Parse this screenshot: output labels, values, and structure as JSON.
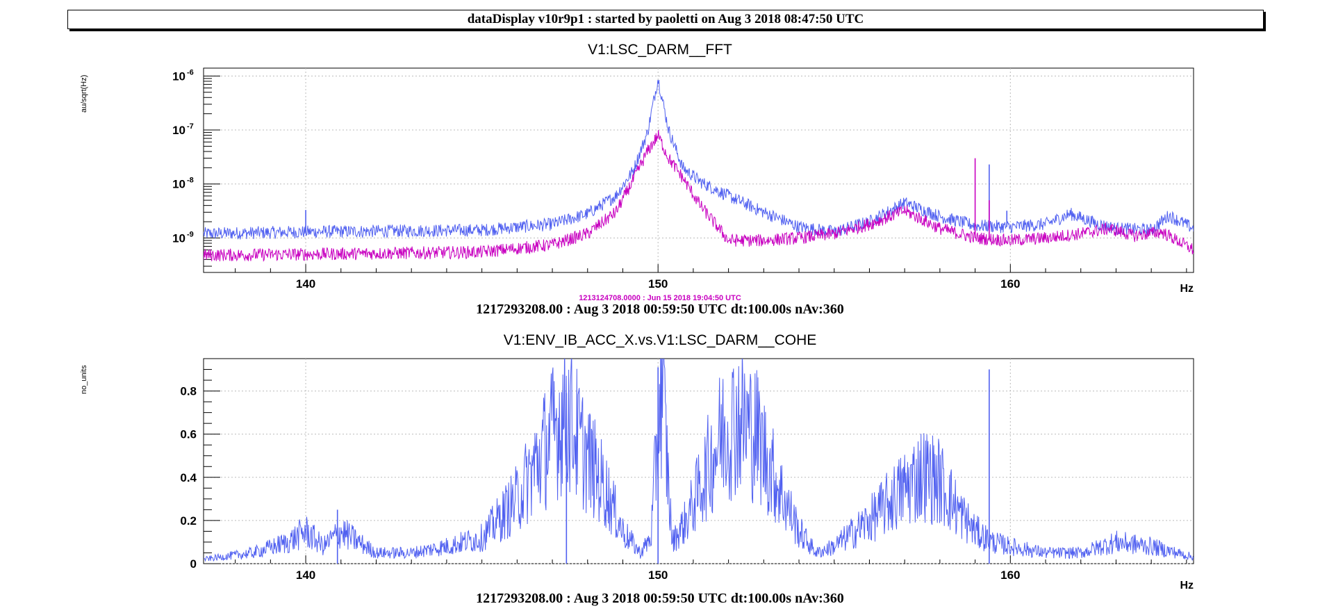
{
  "header": {
    "title": "dataDisplay v10r9p1 : started by paoletti on Aug  3 2018 08:47:50 UTC"
  },
  "colors": {
    "trace_blue": "#5060f0",
    "trace_magenta": "#c800c0",
    "grid": "#bbbbbb"
  },
  "chart_data": [
    {
      "type": "line",
      "title": "V1:LSC_DARM__FFT",
      "ylabel": "au/sqrt(Hz)",
      "xlabel": "Hz",
      "y_scale": "log",
      "xlim": [
        137.1,
        165.2
      ],
      "ylim": [
        2.3e-10,
        1.4e-06
      ],
      "x_ticks": [
        140,
        150,
        160
      ],
      "y_ticks": [
        1e-09,
        1e-08,
        1e-07,
        1e-06
      ],
      "grid": true,
      "reference_label": "1213124708.0000 : Jun 15 2018 19:04:50 UTC",
      "footer": "1217293208.00 : Aug  3 2018 00:59:50 UTC dt:100.00s nAv:360",
      "series": [
        {
          "color": "#5060f0",
          "x": [
            137.1,
            140.0,
            145.0,
            147.0,
            148.0,
            148.8,
            149.3,
            149.7,
            150.0,
            150.3,
            150.7,
            151.2,
            152.0,
            153.0,
            154.0,
            155.0,
            156.0,
            157.0,
            158.0,
            159.0,
            160.0,
            161.0,
            161.7,
            162.5,
            163.0,
            164.0,
            164.5,
            165.2
          ],
          "y": [
            1.2e-09,
            1.3e-09,
            1.4e-09,
            1.8e-09,
            2.8e-09,
            6e-09,
            1.8e-08,
            9e-08,
            9e-07,
            1e-07,
            2e-08,
            1.1e-08,
            6e-09,
            3e-09,
            1.6e-09,
            1.3e-09,
            2e-09,
            4.5e-09,
            2.5e-09,
            1.7e-09,
            1.6e-09,
            1.8e-09,
            2.8e-09,
            1.8e-09,
            1.5e-09,
            1.4e-09,
            2.6e-09,
            1.5e-09
          ],
          "spikes": [
            [
              140.0,
              3.3e-09
            ],
            [
              159.4,
              2.3e-08
            ],
            [
              159.9,
              3.2e-09
            ]
          ]
        },
        {
          "color": "#c800c0",
          "x": [
            137.1,
            140.0,
            145.0,
            147.0,
            148.0,
            148.8,
            149.3,
            149.7,
            150.0,
            150.3,
            150.7,
            151.2,
            152.0,
            153.0,
            154.0,
            155.0,
            156.0,
            157.0,
            158.0,
            159.0,
            160.0,
            161.0,
            162.0,
            162.8,
            163.5,
            164.3,
            165.2
          ],
          "y": [
            4.8e-10,
            5e-10,
            5.5e-10,
            7.5e-10,
            1.2e-09,
            3e-09,
            1.2e-08,
            4e-08,
            8e-08,
            3e-08,
            1.3e-08,
            4e-09,
            9e-10,
            9e-10,
            1e-09,
            1.2e-09,
            1.8e-09,
            3.2e-09,
            1.5e-09,
            1e-09,
            9e-10,
            1e-09,
            1.2e-09,
            1.5e-09,
            1.1e-09,
            1.3e-09,
            6e-10
          ],
          "spikes": [
            [
              159.0,
              3e-08
            ],
            [
              159.4,
              5e-09
            ]
          ]
        }
      ]
    },
    {
      "type": "line",
      "title": "V1:ENV_IB_ACC_X.vs.V1:LSC_DARM__COHE",
      "ylabel": "no_units",
      "xlabel": "Hz",
      "xlim": [
        137.1,
        165.2
      ],
      "ylim": [
        0,
        0.95
      ],
      "x_ticks": [
        140,
        150,
        160
      ],
      "y_ticks": [
        0,
        0.2,
        0.4,
        0.6,
        0.8
      ],
      "grid": true,
      "footer": "1217293208.00 : Aug  3 2018 00:59:50 UTC dt:100.00s nAv:360",
      "series": [
        {
          "color": "#5060f0",
          "x": [
            137.1,
            138.5,
            139.5,
            140.0,
            140.5,
            141.0,
            142.0,
            143.0,
            144.0,
            145.0,
            146.0,
            146.5,
            147.0,
            147.4,
            147.8,
            148.5,
            149.0,
            149.5,
            149.8,
            150.1,
            150.4,
            150.8,
            151.3,
            151.8,
            152.3,
            152.8,
            153.3,
            154.0,
            154.5,
            155.0,
            156.0,
            157.0,
            157.5,
            158.0,
            158.5,
            159.0,
            159.5,
            160.0,
            161.0,
            162.0,
            163.0,
            164.0,
            165.2
          ],
          "y": [
            0.02,
            0.05,
            0.1,
            0.15,
            0.08,
            0.15,
            0.05,
            0.05,
            0.08,
            0.12,
            0.3,
            0.45,
            0.6,
            0.72,
            0.55,
            0.35,
            0.15,
            0.05,
            0.12,
            0.88,
            0.1,
            0.2,
            0.4,
            0.6,
            0.68,
            0.6,
            0.4,
            0.15,
            0.05,
            0.08,
            0.2,
            0.35,
            0.42,
            0.38,
            0.25,
            0.15,
            0.1,
            0.08,
            0.05,
            0.05,
            0.1,
            0.08,
            0.03
          ],
          "spikes": [
            [
              150.0,
              0.91
            ],
            [
              159.4,
              0.9
            ],
            [
              140.9,
              0.25
            ],
            [
              147.4,
              0.79
            ]
          ]
        }
      ]
    }
  ]
}
